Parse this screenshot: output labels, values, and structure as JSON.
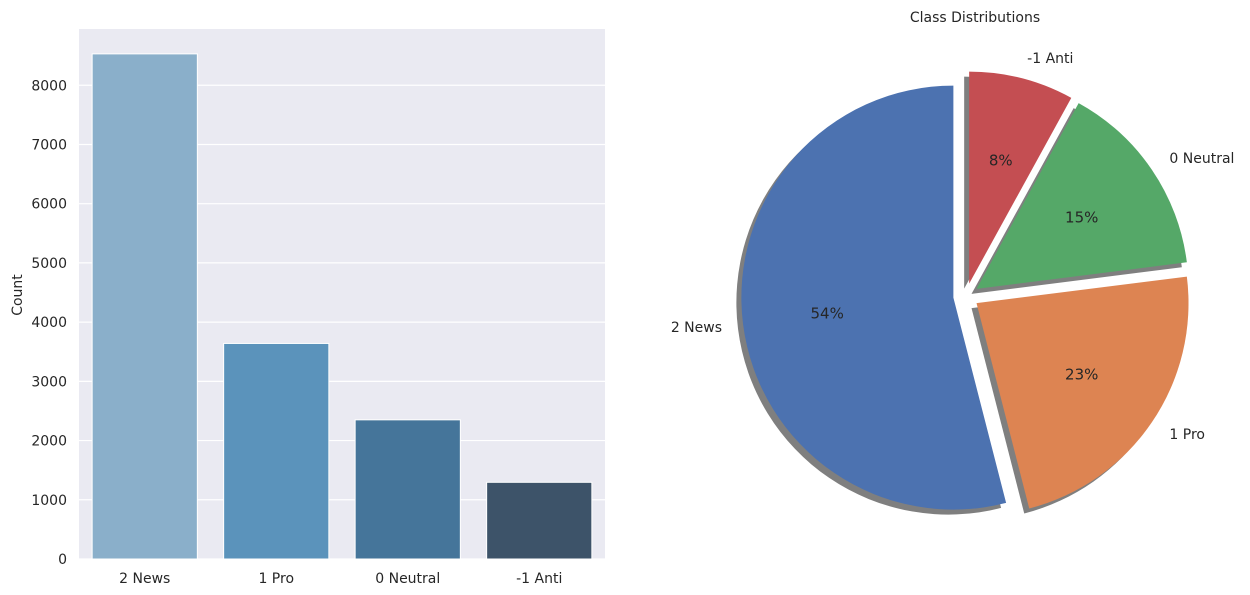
{
  "chart_data": [
    {
      "type": "bar",
      "categories": [
        "2 News",
        "1 Pro",
        "0 Neutral",
        "-1 Anti"
      ],
      "values": [
        8530,
        3640,
        2350,
        1295
      ],
      "ylabel": "Count",
      "xlabel": "",
      "ylim": [
        0,
        8950
      ],
      "yticks": [
        0,
        1000,
        2000,
        3000,
        4000,
        5000,
        6000,
        7000,
        8000
      ],
      "grid": true,
      "colors": [
        "#8aafca",
        "#5b93bb",
        "#45759a",
        "#3d5369"
      ],
      "background": "#eaeaf2"
    },
    {
      "type": "pie",
      "title": "Class Distributions",
      "labels": [
        "2 News",
        "1 Pro",
        "0 Neutral",
        "-1 Anti"
      ],
      "percent_labels": [
        "54%",
        "23%",
        "15%",
        "8%"
      ],
      "values": [
        54,
        23,
        15,
        8
      ],
      "colors": [
        "#4c72b0",
        "#dd8452",
        "#55a868",
        "#c44e52"
      ],
      "exploded": true,
      "shadow": true
    }
  ]
}
